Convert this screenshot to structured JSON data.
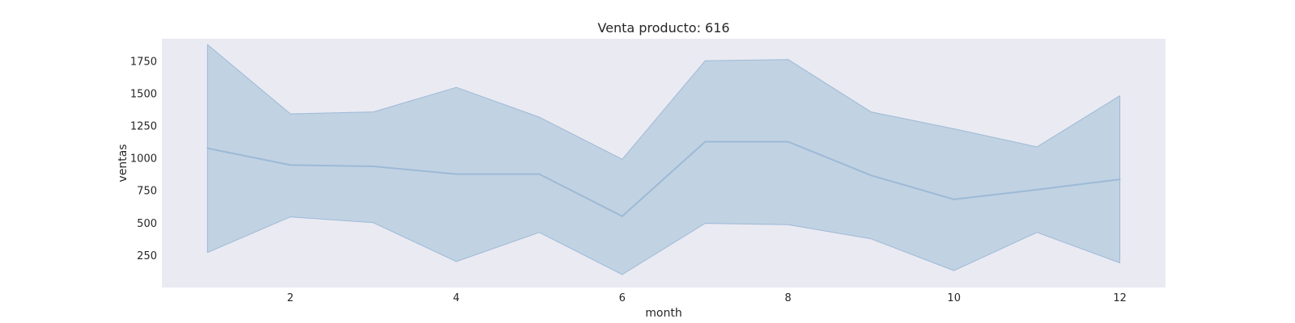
{
  "chart_data": {
    "type": "line",
    "title": "Venta producto: 616",
    "xlabel": "month",
    "ylabel": "ventas",
    "xlim": [
      0.45,
      12.55
    ],
    "ylim": [
      0,
      1920
    ],
    "xticks": [
      2,
      4,
      6,
      8,
      10,
      12
    ],
    "yticks": [
      250,
      500,
      750,
      1000,
      1250,
      1500,
      1750
    ],
    "grid": false,
    "series": [
      {
        "x": [
          1,
          2,
          3,
          4,
          5,
          6,
          7,
          8,
          9,
          10,
          11,
          12
        ],
        "values": [
          1075,
          945,
          935,
          875,
          875,
          550,
          1125,
          1125,
          865,
          680,
          755,
          835
        ],
        "lower": [
          270,
          545,
          500,
          200,
          425,
          100,
          495,
          485,
          375,
          130,
          425,
          190
        ],
        "upper": [
          1875,
          1340,
          1355,
          1545,
          1315,
          990,
          1750,
          1760,
          1355,
          1225,
          1085,
          1480
        ]
      }
    ],
    "colors": {
      "line": "#9dbad6",
      "band": "#c1d2e3",
      "plot_background": "#eaeaf2"
    }
  }
}
